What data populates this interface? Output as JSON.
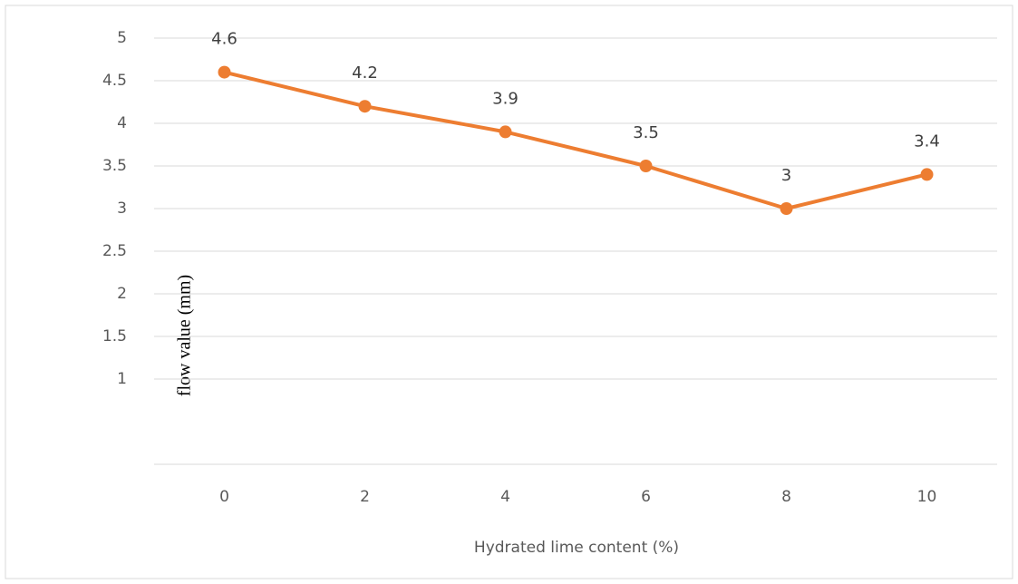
{
  "chart_data": {
    "type": "line",
    "x_label": "Hydrated lime content (%)",
    "y_label": "flow value (mm)",
    "categories": [
      "0",
      "2",
      "4",
      "6",
      "8",
      "10"
    ],
    "series": [
      {
        "name": "flow value",
        "color": "#ed7d31",
        "values": [
          4.6,
          4.2,
          3.9,
          3.5,
          3,
          3.4
        ]
      }
    ],
    "ylim": [
      0,
      5
    ],
    "yticks": [
      1,
      1.5,
      2,
      2.5,
      3,
      3.5,
      4,
      4.5,
      5
    ],
    "grid": true
  }
}
